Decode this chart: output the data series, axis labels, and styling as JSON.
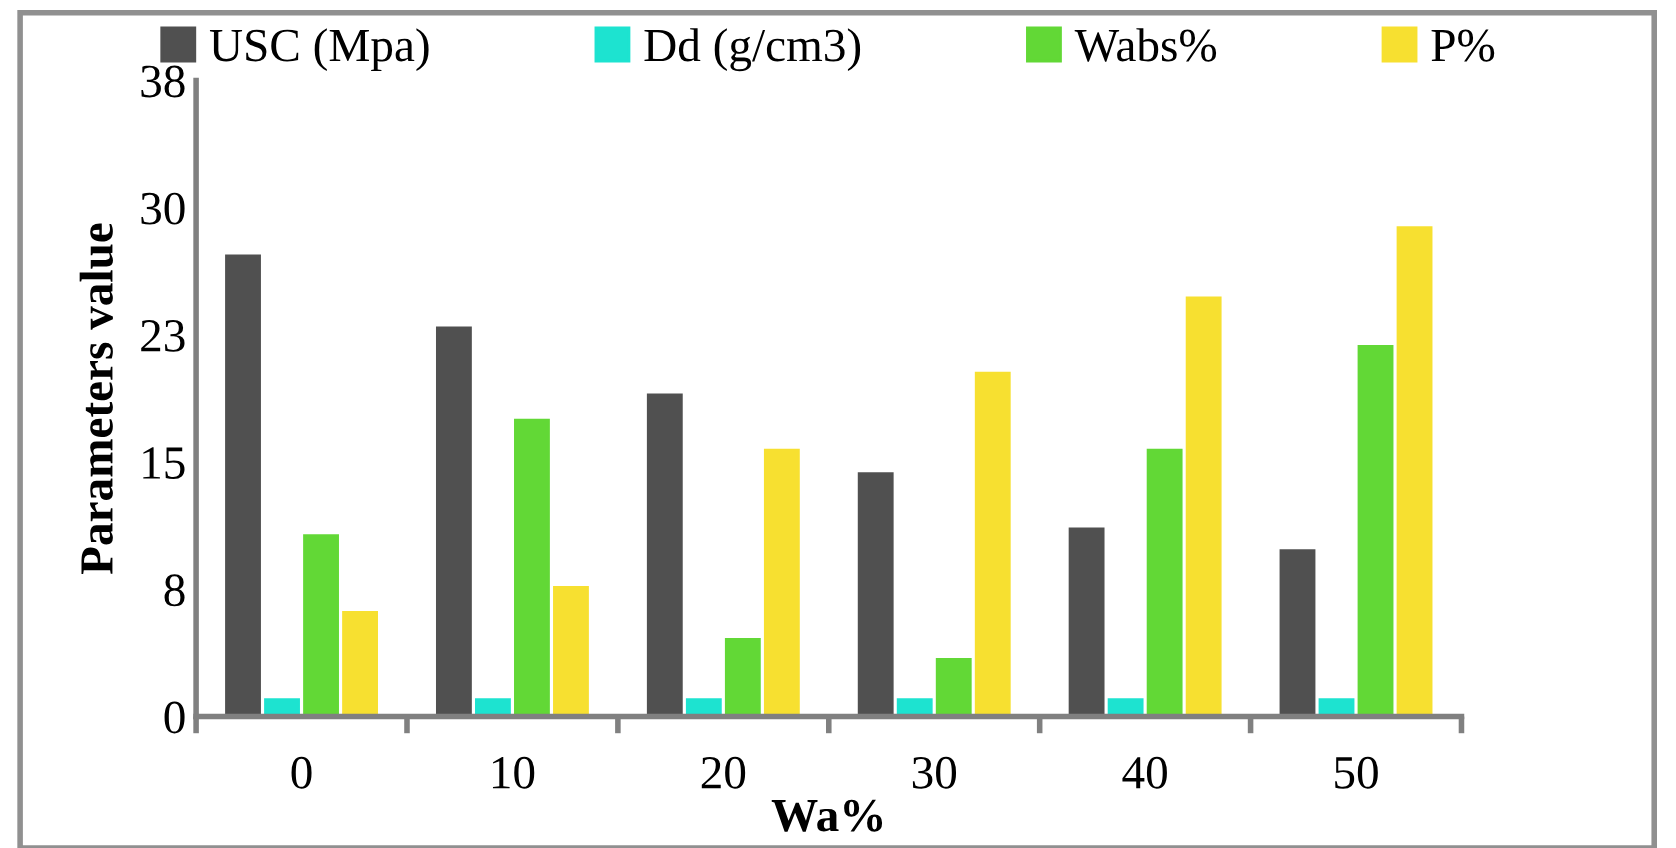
{
  "chart_data": {
    "type": "bar",
    "xlabel": "Wa%",
    "ylabel": "Parameters value",
    "categories": [
      "0",
      "10",
      "20",
      "30",
      "40",
      "50"
    ],
    "series": [
      {
        "name": "USC (Mpa)",
        "color": "#505050",
        "values": [
          27.6,
          23.3,
          19.3,
          14.6,
          11.3,
          10.0
        ]
      },
      {
        "name": "Dd (g/cm3)",
        "color": "#1de3d0",
        "values": [
          1.1,
          1.1,
          1.1,
          1.1,
          1.1,
          1.1
        ]
      },
      {
        "name": "Wabs%",
        "color": "#62d836",
        "values": [
          10.9,
          17.8,
          4.7,
          3.5,
          16.0,
          22.2
        ]
      },
      {
        "name": "P%",
        "color": "#f7e030",
        "values": [
          6.3,
          7.8,
          16.0,
          20.6,
          25.1,
          29.3
        ]
      }
    ],
    "ylim": [
      0,
      38
    ],
    "yticks": [
      0,
      {
        "value": 7.6,
        "label": "8"
      },
      {
        "value": 15.2,
        "label": "15"
      },
      {
        "value": 22.8,
        "label": "23"
      },
      {
        "value": 30.4,
        "label": "30"
      },
      38
    ],
    "grid": false,
    "legend": "top"
  }
}
